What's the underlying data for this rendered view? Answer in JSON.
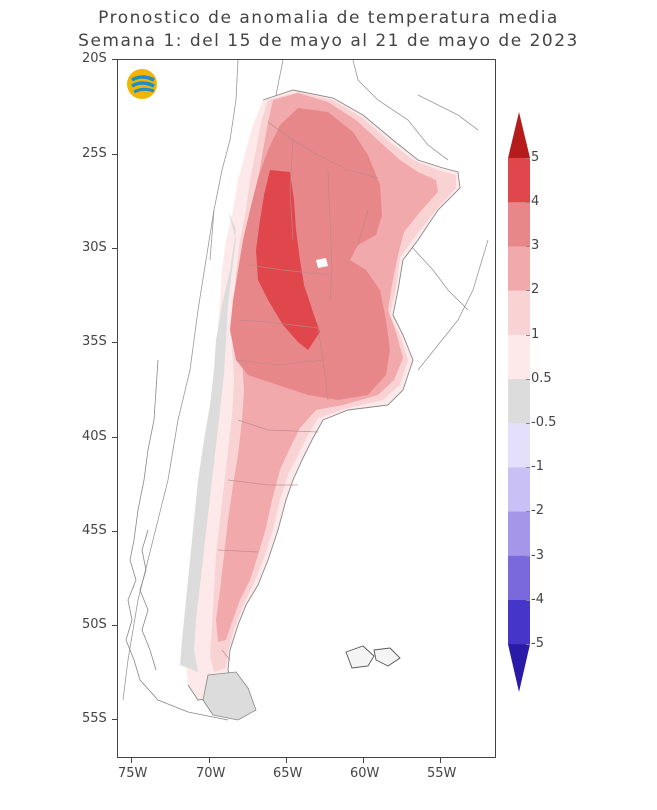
{
  "title": {
    "line1": "Pronostico de anomalia de temperatura media",
    "line2": "Semana 1: del 15 de mayo al 21 de mayo de 2023"
  },
  "logo": {
    "icon": "smn-logo-icon"
  },
  "axes": {
    "y_labels": [
      "20S",
      "25S",
      "30S",
      "35S",
      "40S",
      "45S",
      "50S",
      "55S"
    ],
    "x_labels": [
      "75W",
      "70W",
      "65W",
      "60W",
      "55W"
    ]
  },
  "colorbar": {
    "labels": [
      "5",
      "4",
      "3",
      "2",
      "1",
      "0.5",
      "-0.5",
      "-1",
      "-2",
      "-3",
      "-4",
      "-5"
    ],
    "colors": [
      "#b71c1c",
      "#e0474c",
      "#e8878a",
      "#f2a9ab",
      "#f9d3d4",
      "#fde9ea",
      "#dcdcdc",
      "#e4e0fb",
      "#c9c0f5",
      "#a596ea",
      "#7a68dd",
      "#4535c8",
      "#2a1aa8"
    ]
  },
  "map_layers": {
    "base_country": "#fde9ea",
    "gray_zone": "#dcdcdc",
    "level_1": "#f9d3d4",
    "level_2": "#f2a9ab",
    "level_3": "#e8878a",
    "level_4": "#e0474c"
  }
}
